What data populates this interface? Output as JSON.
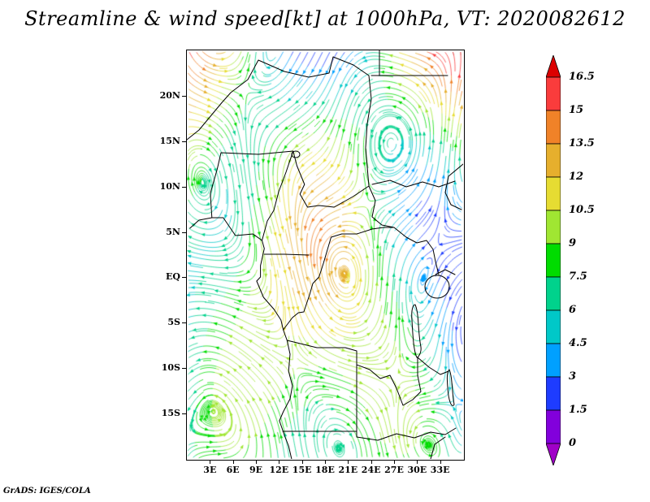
{
  "title": "Streamline & wind speed[kt] at 1000hPa, VT: 2020082612",
  "credit": "GrADS: IGES/COLA",
  "chart_data": {
    "type": "streamline",
    "title": "Streamline & wind speed[kt] at 1000hPa, VT: 2020082612",
    "field": "wind speed",
    "units": "kt",
    "level": "1000hPa",
    "valid_time": "2020082612",
    "region": {
      "lon_min": 0,
      "lon_max": 36,
      "lat_min": -20,
      "lat_max": 25
    },
    "x_axis": {
      "tick_labels": [
        "3E",
        "6E",
        "9E",
        "12E",
        "15E",
        "18E",
        "21E",
        "24E",
        "27E",
        "30E",
        "33E"
      ],
      "tick_values": [
        3,
        6,
        9,
        12,
        15,
        18,
        21,
        24,
        27,
        30,
        33
      ]
    },
    "y_axis": {
      "tick_labels": [
        "20N",
        "15N",
        "10N",
        "5N",
        "EQ",
        "5S",
        "10S",
        "15S"
      ],
      "tick_values": [
        20,
        15,
        10,
        5,
        0,
        -5,
        -10,
        -15
      ]
    },
    "colorbar": {
      "tick_labels": [
        "16.5",
        "15",
        "13.5",
        "12",
        "10.5",
        "9",
        "7.5",
        "6",
        "4.5",
        "3",
        "1.5",
        "0"
      ],
      "levels": [
        0,
        1.5,
        3,
        4.5,
        6,
        7.5,
        9,
        10.5,
        12,
        13.5,
        15,
        16.5
      ],
      "colors_low_to_high": [
        "#A000C8",
        "#8200DC",
        "#1E3CFF",
        "#00A0FF",
        "#00C8C8",
        "#00D28C",
        "#00DC00",
        "#A0E632",
        "#E6DC32",
        "#E6AF2D",
        "#F08228",
        "#FA3C3C",
        "#DC0000"
      ]
    }
  }
}
